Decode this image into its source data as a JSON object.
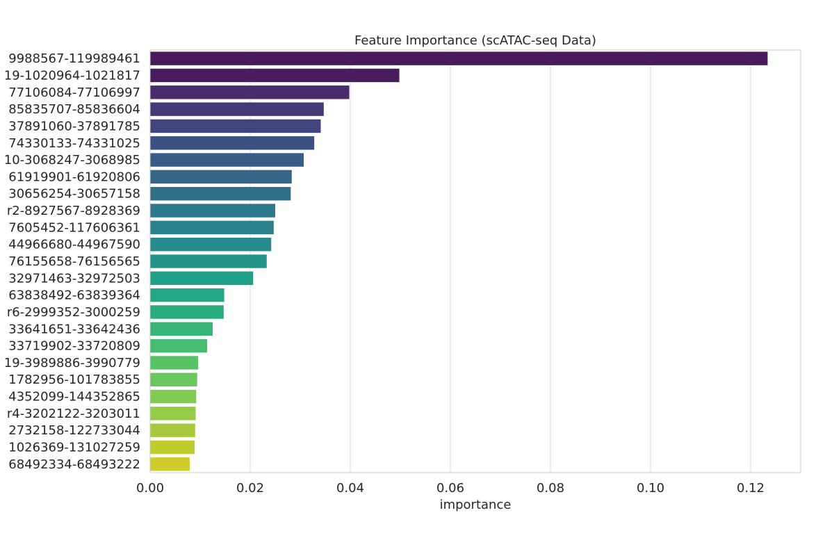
{
  "chart_data": {
    "type": "bar",
    "orientation": "horizontal",
    "title": "Feature Importance (scATAC-seq Data)",
    "xlabel": "importance",
    "ylabel": "",
    "xlim": [
      0,
      0.13
    ],
    "x_ticks": [
      0.0,
      0.02,
      0.04,
      0.06,
      0.08,
      0.1,
      0.12
    ],
    "x_tick_labels": [
      "0.00",
      "0.02",
      "0.04",
      "0.06",
      "0.08",
      "0.10",
      "0.12"
    ],
    "grid": "vertical",
    "palette": "viridis",
    "categories": [
      "9988567-119989461",
      "19-1020964-1021817",
      "77106084-77106997",
      "85835707-85836604",
      "37891060-37891785",
      "74330133-74331025",
      "10-3068247-3068985",
      "61919901-61920806",
      "30656254-30657158",
      "r2-8927567-8928369",
      "7605452-117606361",
      "44966680-44967590",
      "76155658-76156565",
      "32971463-32972503",
      "63838492-63839364",
      "r6-2999352-3000259",
      "33641651-33642436",
      "33719902-33720809",
      "19-3989886-3990779",
      "1782956-101783855",
      "4352099-144352865",
      "r4-3202122-3203011",
      "2732158-122733044",
      "1026369-131027259",
      "68492334-68493222"
    ],
    "values": [
      0.1234,
      0.0498,
      0.0398,
      0.0347,
      0.0341,
      0.0328,
      0.0307,
      0.0283,
      0.0281,
      0.025,
      0.0247,
      0.0242,
      0.0233,
      0.0206,
      0.0148,
      0.0147,
      0.0125,
      0.0114,
      0.0096,
      0.0094,
      0.0092,
      0.0091,
      0.009,
      0.0089,
      0.0079
    ],
    "colors": [
      "#481A5B",
      "#481D60",
      "#482C6B",
      "#453A77",
      "#42457D",
      "#3D5082",
      "#395C86",
      "#356688",
      "#316F89",
      "#2D788B",
      "#2A818C",
      "#278B8C",
      "#24948B",
      "#21A088",
      "#22A884",
      "#28AE80",
      "#38B578",
      "#46BC71",
      "#58C267",
      "#6AC75D",
      "#80CB50",
      "#95CB46",
      "#AAC83C",
      "#BFCC2D",
      "#CECB2A"
    ]
  }
}
